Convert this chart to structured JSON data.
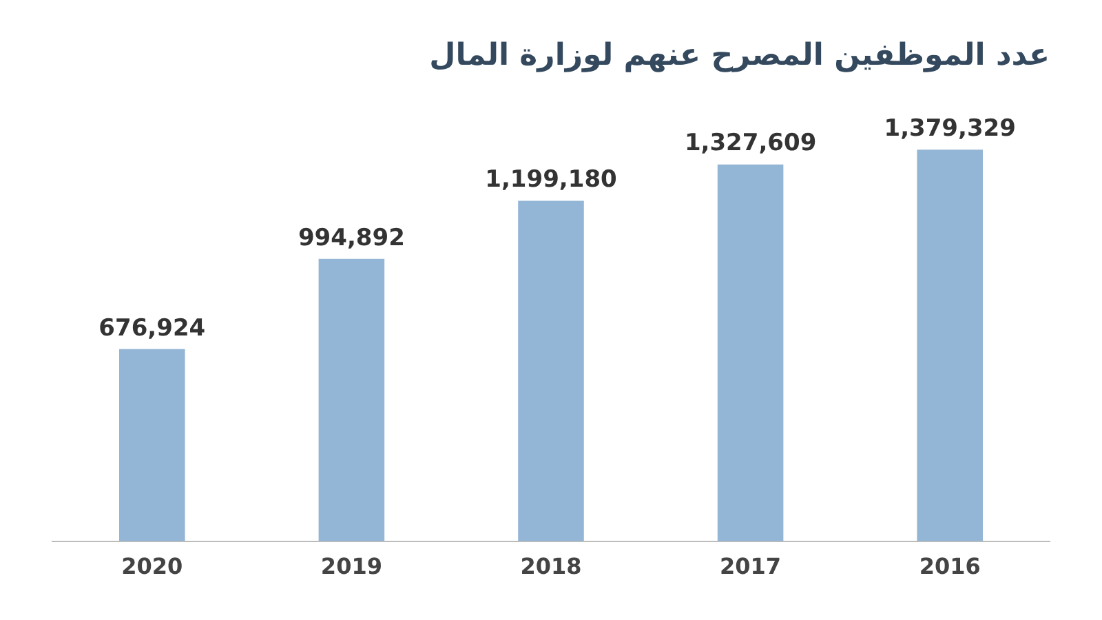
{
  "chart_data": {
    "type": "bar",
    "title": "عدد الموظفين المصرح عنهم لوزارة المال",
    "categories": [
      "2020",
      "2019",
      "2018",
      "2017",
      "2016"
    ],
    "values": [
      676924,
      994892,
      1199180,
      1327609,
      1379329
    ],
    "value_labels": [
      "676,924",
      "994,892",
      "1,199,180",
      "1,327,609",
      "1,379,329"
    ],
    "color": "#94b6d6",
    "grid": false,
    "legend": false
  }
}
